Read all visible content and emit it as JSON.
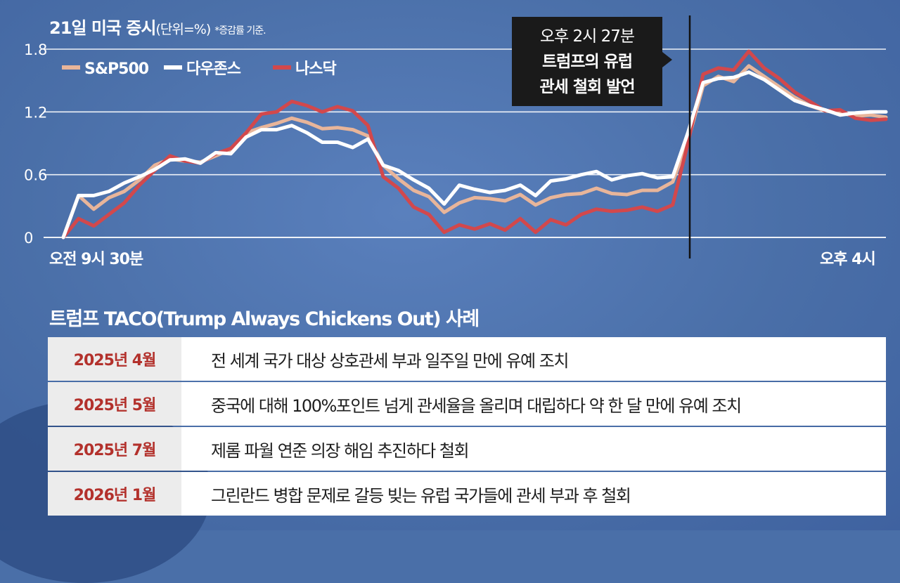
{
  "title": {
    "main": "21일 미국 증시",
    "unit": "(단위=%)",
    "note": "*증감률 기준."
  },
  "callout": {
    "line1": "오후 2시 27분",
    "line2": "트럼프의 유럽",
    "line3": "관세 철회 발언"
  },
  "colors": {
    "background": "#4a6fa8",
    "sp500": "#e8b59a",
    "dow": "#ffffff",
    "nasdaq": "#d2484c",
    "date_text": "#b3312c"
  },
  "chart_data": {
    "type": "line",
    "xlabel": "",
    "ylabel": "",
    "ylim": [
      0,
      1.8
    ],
    "yticks": [
      "1.8",
      "1.2",
      "0.6",
      "0"
    ],
    "x_tick_labels": [
      "오전 9시 30분",
      "오후 4시"
    ],
    "x_range": [
      "09:30",
      "16:00"
    ],
    "event_marker": "14:27",
    "legend_position": "top-left",
    "grid": true,
    "series": [
      {
        "name": "S&P500",
        "values": [
          0.0,
          0.4,
          0.27,
          0.38,
          0.44,
          0.55,
          0.69,
          0.75,
          0.73,
          0.72,
          0.78,
          0.84,
          1.0,
          1.05,
          1.09,
          1.14,
          1.1,
          1.04,
          1.05,
          1.03,
          0.97,
          0.69,
          0.56,
          0.45,
          0.39,
          0.24,
          0.33,
          0.38,
          0.37,
          0.35,
          0.41,
          0.31,
          0.38,
          0.41,
          0.42,
          0.47,
          0.42,
          0.41,
          0.45,
          0.45,
          0.53,
          0.92,
          1.45,
          1.54,
          1.49,
          1.64,
          1.54,
          1.44,
          1.34,
          1.26,
          1.21,
          1.19,
          1.16,
          1.17,
          1.15
        ]
      },
      {
        "name": "다우존스",
        "values": [
          0.0,
          0.4,
          0.4,
          0.44,
          0.52,
          0.58,
          0.65,
          0.74,
          0.75,
          0.71,
          0.81,
          0.8,
          0.96,
          1.03,
          1.03,
          1.07,
          1.0,
          0.91,
          0.91,
          0.86,
          0.94,
          0.69,
          0.64,
          0.55,
          0.47,
          0.32,
          0.5,
          0.46,
          0.43,
          0.45,
          0.5,
          0.4,
          0.54,
          0.56,
          0.6,
          0.63,
          0.55,
          0.59,
          0.61,
          0.57,
          0.58,
          1.0,
          1.48,
          1.52,
          1.53,
          1.58,
          1.51,
          1.41,
          1.31,
          1.26,
          1.22,
          1.17,
          1.19,
          1.2,
          1.2
        ]
      },
      {
        "name": "나스닥",
        "values": [
          0.0,
          0.18,
          0.11,
          0.22,
          0.33,
          0.5,
          0.64,
          0.78,
          0.73,
          0.71,
          0.8,
          0.85,
          1.0,
          1.18,
          1.2,
          1.3,
          1.26,
          1.2,
          1.25,
          1.21,
          1.07,
          0.58,
          0.47,
          0.29,
          0.22,
          0.05,
          0.12,
          0.08,
          0.13,
          0.07,
          0.18,
          0.05,
          0.17,
          0.12,
          0.22,
          0.27,
          0.25,
          0.26,
          0.29,
          0.25,
          0.31,
          0.9,
          1.56,
          1.62,
          1.6,
          1.78,
          1.62,
          1.52,
          1.39,
          1.3,
          1.21,
          1.22,
          1.14,
          1.12,
          1.13
        ]
      }
    ]
  },
  "cases": {
    "title": "트럼프 TACO(Trump Always Chickens Out) 사례",
    "rows": [
      {
        "date": "2025년 4월",
        "desc": "전 세계 국가 대상 상호관세 부과 일주일 만에 유예 조치"
      },
      {
        "date": "2025년 5월",
        "desc": "중국에 대해 100%포인트 넘게 관세율을 올리며 대립하다 약 한 달 만에 유예 조치"
      },
      {
        "date": "2025년 7월",
        "desc": "제롬 파월 연준 의장 해임 추진하다 철회"
      },
      {
        "date": "2026년 1월",
        "desc": "그린란드 병합 문제로 갈등 빚는 유럽 국가들에 관세 부과 후 철회"
      }
    ]
  }
}
